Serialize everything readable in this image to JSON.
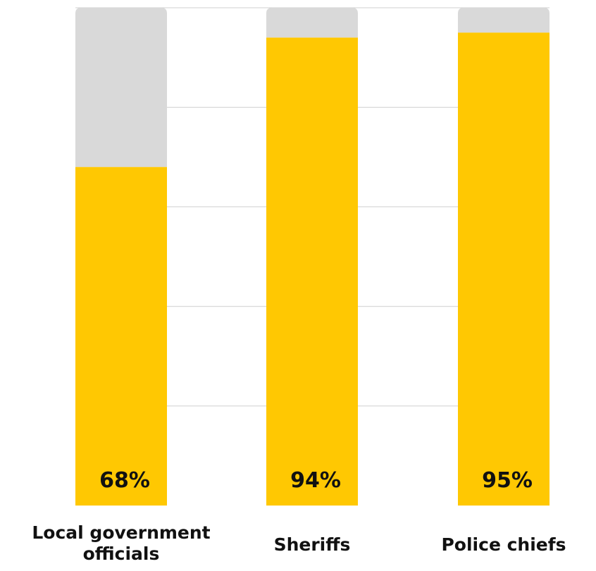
{
  "chart_data": {
    "type": "bar",
    "stacked_to_total": true,
    "categories": [
      "Local government officials",
      "Sheriffs",
      "Police chiefs"
    ],
    "category_label_lines": [
      [
        "Local government",
        "officials"
      ],
      [
        "Sheriffs"
      ],
      [
        "Police chiefs"
      ]
    ],
    "values": [
      68,
      94,
      95
    ],
    "value_labels": [
      "68%",
      "94%",
      "95%"
    ],
    "total": 100,
    "ylim": [
      0,
      100
    ],
    "grid": true,
    "gridline_values": [
      20,
      40,
      60,
      80,
      100
    ],
    "colors": {
      "value": "#FFC802",
      "remainder": "#D9D9D9",
      "grid": "#D0D0D0",
      "text": "#111111"
    },
    "title": "",
    "xlabel": "",
    "ylabel": ""
  }
}
